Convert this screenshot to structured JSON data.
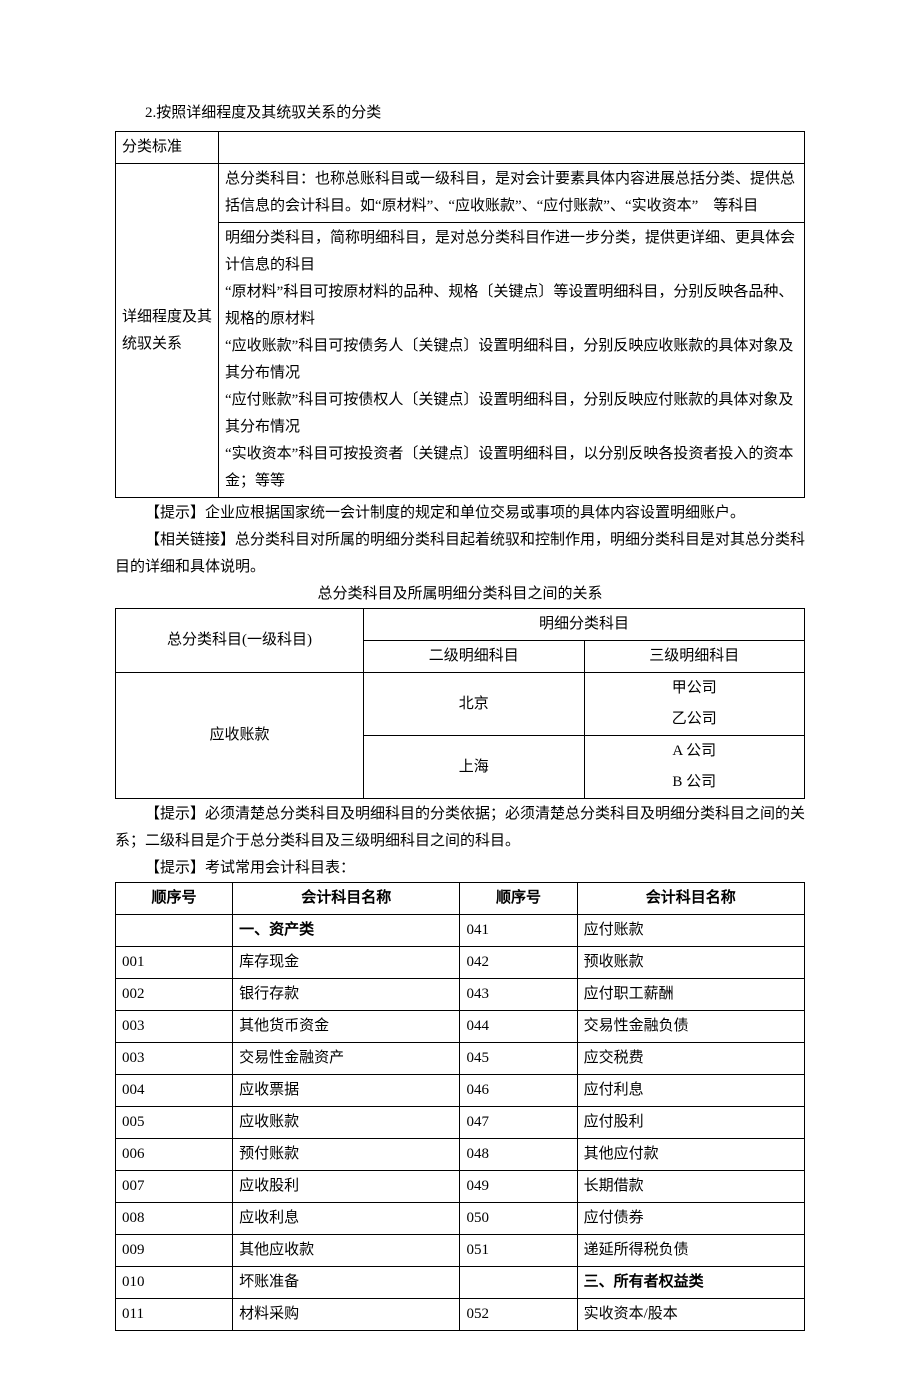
{
  "heading1": "2.按照详细程度及其统驭关系的分类",
  "table1": {
    "row1_col1": "分类标准",
    "row1_col2": "",
    "row2_col1": "详细程度及其统驭关系",
    "row2a": "总分类科目：也称总账科目或一级科目，是对会计要素具体内容进展总括分类、提供总括信息的会计科目。如“原材料”、“应收账款”、“应付账款”、“实收资本”　等科目",
    "row2b": "明细分类科目，简称明细科目，是对总分类科目作进一步分类，提供更详细、更具体会计信息的科目\n“原材料”科目可按原材料的品种、规格〔关键点〕等设置明细科目，分别反映各品种、规格的原材料\n“应收账款”科目可按债务人〔关键点〕设置明细科目，分别反映应收账款的具体对象及其分布情况\n“应付账款”科目可按债权人〔关键点〕设置明细科目，分别反映应付账款的具体对象及其分布情况\n“实收资本”科目可按投资者〔关键点〕设置明细科目，以分别反映各投资者投入的资本金；等等"
  },
  "para1": "【提示】企业应根据国家统一会计制度的规定和单位交易或事项的具体内容设置明细账户。",
  "para2": "【相关链接】总分类科目对所属的明细分类科目起着统驭和控制作用，明细分类科目是对其总分类科目的详细和具体说明。",
  "caption2": "总分类科目及所属明细分类科目之间的关系",
  "table2": {
    "h_level1": "总分类科目(一级科目)",
    "h_detail": "明细分类科目",
    "h_second": "二级明细科目",
    "h_third": "三级明细科目",
    "r1_c1": "应收账款",
    "r1_c2a": "北京",
    "r1_c3a1": "甲公司",
    "r1_c3a2": "乙公司",
    "r1_c2b": "上海",
    "r1_c3b1": "A 公司",
    "r1_c3b2": "B 公司"
  },
  "para3": "【提示】必须清楚总分类科目及明细科目的分类依据；必须清楚总分类科目及明细分类科目之间的关系；二级科目是介于总分类科目及三级明细科目之间的科目。",
  "para4": "【提示】考试常用会计科目表：",
  "table3": {
    "head": [
      "顺序号",
      "会计科目名称",
      "顺序号",
      "会计科目名称"
    ],
    "rows": [
      {
        "c1": "",
        "c2": "一、资产类",
        "c2_bold": true,
        "c3": "041",
        "c4": "应付账款"
      },
      {
        "c1": "001",
        "c2": "库存现金",
        "c3": "042",
        "c4": "预收账款"
      },
      {
        "c1": "002",
        "c2": "银行存款",
        "c3": "043",
        "c4": "应付职工薪酬"
      },
      {
        "c1": "003",
        "c2": "其他货币资金",
        "c3": "044",
        "c4": "交易性金融负债"
      },
      {
        "c1": "003",
        "c2": "交易性金融资产",
        "c3": "045",
        "c4": "应交税费"
      },
      {
        "c1": "004",
        "c2": "应收票据",
        "c3": "046",
        "c4": "应付利息"
      },
      {
        "c1": "005",
        "c2": "应收账款",
        "c3": "047",
        "c4": "应付股利"
      },
      {
        "c1": "006",
        "c2": "预付账款",
        "c3": "048",
        "c4": "其他应付款"
      },
      {
        "c1": "007",
        "c2": "应收股利",
        "c3": "049",
        "c4": "长期借款"
      },
      {
        "c1": "008",
        "c2": "应收利息",
        "c3": "050",
        "c4": "应付债券"
      },
      {
        "c1": "009",
        "c2": "其他应收款",
        "c3": "051",
        "c4": "递延所得税负债"
      },
      {
        "c1": "010",
        "c2": "坏账准备",
        "c3": "",
        "c4": "三、所有者权益类",
        "c4_bold": true
      },
      {
        "c1": "011",
        "c2": "材料采购",
        "c3": "052",
        "c4": "实收资本/股本"
      }
    ]
  }
}
